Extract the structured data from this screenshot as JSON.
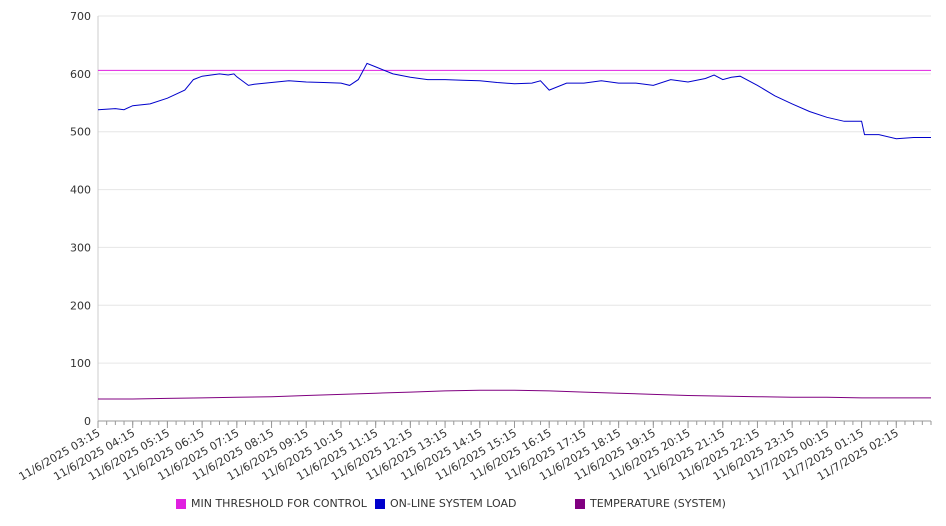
{
  "chart_data": {
    "type": "line",
    "title": "",
    "xlabel": "",
    "ylabel": "",
    "ylim": [
      0,
      700
    ],
    "yticks": [
      0,
      100,
      200,
      300,
      400,
      500,
      600,
      700
    ],
    "grid": true,
    "legend_position": "bottom",
    "x_tick_labels": [
      "11/6/2025 03:15",
      "11/6/2025 04:15",
      "11/6/2025 05:15",
      "11/6/2025 06:15",
      "11/6/2025 07:15",
      "11/6/2025 08:15",
      "11/6/2025 09:15",
      "11/6/2025 10:15",
      "11/6/2025 11:15",
      "11/6/2025 12:15",
      "11/6/2025 13:15",
      "11/6/2025 14:15",
      "11/6/2025 15:15",
      "11/6/2025 16:15",
      "11/6/2025 17:15",
      "11/6/2025 18:15",
      "11/6/2025 19:15",
      "11/6/2025 20:15",
      "11/6/2025 21:15",
      "11/6/2025 22:15",
      "11/6/2025 23:15",
      "11/7/2025 00:15",
      "11/7/2025 01:15",
      "11/7/2025 02:15"
    ],
    "x_range": [
      "2025-11-06 03:15",
      "2025-11-07 03:15"
    ],
    "series": [
      {
        "name": "MIN THRESHOLD FOR CONTROL",
        "color": "#e020e0",
        "x": [
          "2025-11-06 03:15",
          "2025-11-07 03:15"
        ],
        "values": [
          606,
          606
        ]
      },
      {
        "name": "ON-LINE SYSTEM LOAD",
        "color": "#0000cc",
        "x": [
          "2025-11-06 03:15",
          "2025-11-06 03:45",
          "2025-11-06 04:00",
          "2025-11-06 04:15",
          "2025-11-06 04:45",
          "2025-11-06 05:15",
          "2025-11-06 05:45",
          "2025-11-06 06:00",
          "2025-11-06 06:15",
          "2025-11-06 06:45",
          "2025-11-06 07:00",
          "2025-11-06 07:10",
          "2025-11-06 07:15",
          "2025-11-06 07:35",
          "2025-11-06 07:45",
          "2025-11-06 08:15",
          "2025-11-06 08:45",
          "2025-11-06 09:15",
          "2025-11-06 09:45",
          "2025-11-06 10:15",
          "2025-11-06 10:30",
          "2025-11-06 10:45",
          "2025-11-06 11:00",
          "2025-11-06 11:15",
          "2025-11-06 11:45",
          "2025-11-06 12:15",
          "2025-11-06 12:45",
          "2025-11-06 13:15",
          "2025-11-06 13:45",
          "2025-11-06 14:15",
          "2025-11-06 14:45",
          "2025-11-06 15:15",
          "2025-11-06 15:45",
          "2025-11-06 16:00",
          "2025-11-06 16:15",
          "2025-11-06 16:45",
          "2025-11-06 17:15",
          "2025-11-06 17:45",
          "2025-11-06 18:15",
          "2025-11-06 18:45",
          "2025-11-06 19:15",
          "2025-11-06 19:45",
          "2025-11-06 20:15",
          "2025-11-06 20:45",
          "2025-11-06 21:00",
          "2025-11-06 21:15",
          "2025-11-06 21:30",
          "2025-11-06 21:45",
          "2025-11-06 22:15",
          "2025-11-06 22:45",
          "2025-11-06 23:15",
          "2025-11-06 23:45",
          "2025-11-07 00:15",
          "2025-11-07 00:45",
          "2025-11-07 01:15",
          "2025-11-07 01:20",
          "2025-11-07 01:45",
          "2025-11-07 02:15",
          "2025-11-07 02:45",
          "2025-11-07 03:15"
        ],
        "values": [
          538,
          540,
          538,
          545,
          548,
          558,
          572,
          590,
          596,
          600,
          598,
          600,
          595,
          580,
          582,
          585,
          588,
          586,
          585,
          584,
          580,
          590,
          618,
          612,
          600,
          594,
          590,
          590,
          589,
          588,
          585,
          583,
          584,
          588,
          572,
          584,
          584,
          588,
          584,
          584,
          580,
          590,
          586,
          592,
          598,
          590,
          594,
          596,
          580,
          562,
          548,
          535,
          525,
          518,
          518,
          495,
          495,
          488,
          490,
          490
        ]
      },
      {
        "name": "TEMPERATURE (SYSTEM)",
        "color": "#800080",
        "x": [
          "2025-11-06 03:15",
          "2025-11-06 04:15",
          "2025-11-06 05:15",
          "2025-11-06 06:15",
          "2025-11-06 07:15",
          "2025-11-06 08:15",
          "2025-11-06 09:15",
          "2025-11-06 10:15",
          "2025-11-06 11:15",
          "2025-11-06 12:15",
          "2025-11-06 13:15",
          "2025-11-06 14:15",
          "2025-11-06 15:15",
          "2025-11-06 16:15",
          "2025-11-06 17:15",
          "2025-11-06 18:15",
          "2025-11-06 19:15",
          "2025-11-06 20:15",
          "2025-11-06 21:15",
          "2025-11-06 22:15",
          "2025-11-06 23:15",
          "2025-11-07 00:15",
          "2025-11-07 01:15",
          "2025-11-07 02:15",
          "2025-11-07 03:15"
        ],
        "values": [
          38,
          38,
          39,
          40,
          41,
          42,
          44,
          46,
          48,
          50,
          52,
          53,
          53,
          52,
          50,
          48,
          46,
          44,
          43,
          42,
          41,
          41,
          40,
          40,
          40
        ]
      }
    ]
  }
}
